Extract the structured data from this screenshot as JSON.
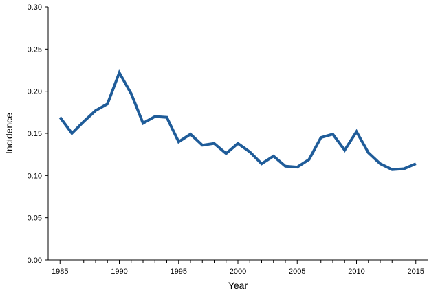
{
  "chart_data": {
    "type": "line",
    "title": "",
    "xlabel": "Year",
    "ylabel": "Incidence",
    "xlim": [
      1984,
      2016
    ],
    "ylim": [
      0,
      0.3
    ],
    "grid": false,
    "legend": "none",
    "x_tick_labels": [
      "1985",
      "1990",
      "1995",
      "2000",
      "2005",
      "2010",
      "2015"
    ],
    "y_tick_labels": [
      "0.00",
      "0.05",
      "0.10",
      "0.15",
      "0.20",
      "0.25",
      "0.30"
    ],
    "series": [
      {
        "color": "#1f5c99",
        "x": [
          1985,
          1986,
          1987,
          1988,
          1989,
          1990,
          1991,
          1992,
          1993,
          1994,
          1995,
          1996,
          1997,
          1998,
          1999,
          2000,
          2001,
          2002,
          2003,
          2004,
          2005,
          2006,
          2007,
          2008,
          2009,
          2010,
          2011,
          2012,
          2013,
          2014,
          2015
        ],
        "values": [
          0.169,
          0.15,
          0.164,
          0.177,
          0.185,
          0.222,
          0.197,
          0.162,
          0.17,
          0.169,
          0.14,
          0.149,
          0.136,
          0.138,
          0.126,
          0.138,
          0.128,
          0.114,
          0.123,
          0.111,
          0.11,
          0.119,
          0.145,
          0.149,
          0.13,
          0.152,
          0.127,
          0.114,
          0.107,
          0.108,
          0.114
        ]
      }
    ]
  }
}
